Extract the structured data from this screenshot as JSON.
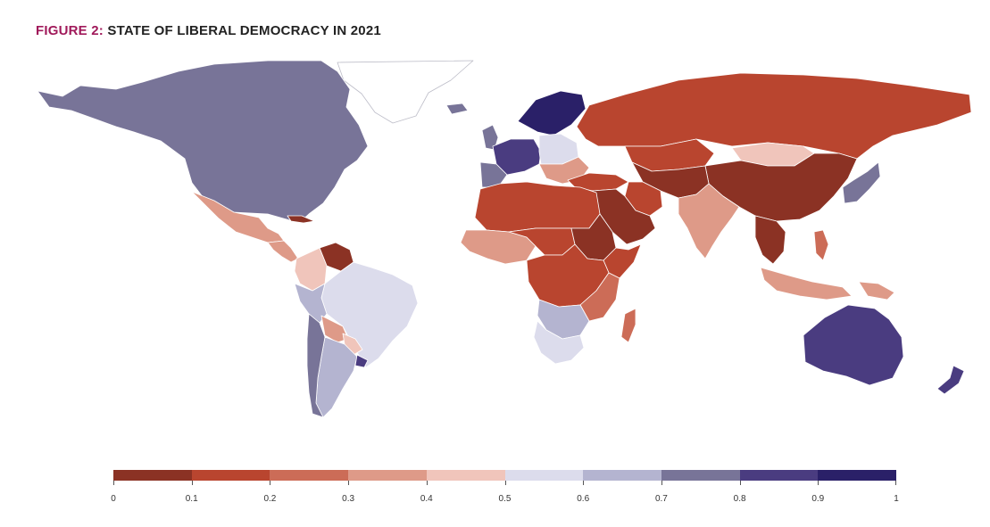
{
  "title": {
    "lead": "FIGURE 2:",
    "main": "STATE OF LIBERAL DEMOCRACY IN 2021"
  },
  "legend": {
    "colors": [
      "#8b3224",
      "#b9452f",
      "#cc6c57",
      "#de9a88",
      "#f0c5bb",
      "#dcdcec",
      "#b4b4d0",
      "#787498",
      "#4a3c80",
      "#2a2068"
    ],
    "labels": [
      "0",
      "0.1",
      "0.2",
      "0.3",
      "0.4",
      "0.5",
      "0.6",
      "0.7",
      "0.8",
      "0.9",
      "1"
    ]
  },
  "regions": {
    "greenland": "#ffffff",
    "north_america": "#787498",
    "mexico": "#de9a88",
    "central_america": "#de9a88",
    "cuba": "#8b3224",
    "venezuela": "#8b3224",
    "colombia": "#f0c5bb",
    "peru": "#b4b4d0",
    "brazil": "#dcdcec",
    "bolivia": "#de9a88",
    "paraguay": "#f0c5bb",
    "argentina": "#b4b4d0",
    "chile": "#787498",
    "uruguay": "#4a3c80",
    "iceland": "#787498",
    "uk_ireland": "#787498",
    "scandinavia": "#2a2068",
    "western_europe": "#4a3c80",
    "iberia": "#787498",
    "eastern_europe": "#dcdcec",
    "balkans": "#de9a88",
    "russia": "#b9452f",
    "kazakhstan": "#b9452f",
    "mongolia": "#f0c5bb",
    "china": "#8b3224",
    "central_asia": "#8b3224",
    "turkey": "#b9452f",
    "iran": "#b9452f",
    "arabia": "#8b3224",
    "india": "#de9a88",
    "southeast_asia": "#8b3224",
    "korea_japan": "#787498",
    "indonesia": "#de9a88",
    "philippines": "#cc6c57",
    "png": "#de9a88",
    "australia": "#4a3c80",
    "new_zealand": "#4a3c80",
    "north_africa": "#b9452f",
    "sahel": "#b9452f",
    "west_africa": "#de9a88",
    "sudan": "#8b3224",
    "horn_africa": "#b9452f",
    "central_africa": "#b9452f",
    "east_africa": "#cc6c57",
    "southern_africa": "#b4b4d0",
    "south_africa": "#dcdcec",
    "madagascar": "#cc6c57"
  }
}
